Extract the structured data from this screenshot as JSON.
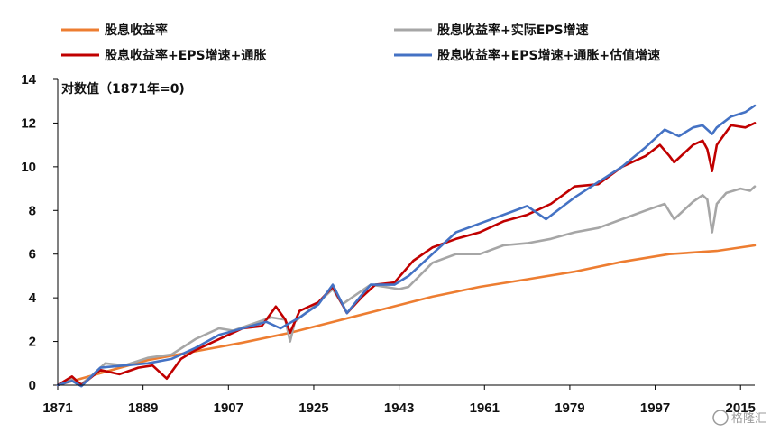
{
  "chart_data": {
    "type": "line",
    "title": "",
    "xlabel": "",
    "ylabel": "对数值（1871年=0)",
    "xlim": [
      1871,
      2018
    ],
    "ylim": [
      0,
      14
    ],
    "yticks": [
      "0",
      "2",
      "4",
      "6",
      "8",
      "10",
      "12",
      "14"
    ],
    "xticks": [
      "1871",
      "1889",
      "1907",
      "1925",
      "1943",
      "1961",
      "1979",
      "1997",
      "2015"
    ],
    "grid": false,
    "legend_position": "top",
    "series": [
      {
        "name": "股息收益率",
        "color": "#ED7D31",
        "points": [
          [
            1871,
            0
          ],
          [
            1880,
            0.55
          ],
          [
            1890,
            1.15
          ],
          [
            1900,
            1.55
          ],
          [
            1910,
            1.95
          ],
          [
            1920,
            2.4
          ],
          [
            1930,
            2.95
          ],
          [
            1940,
            3.5
          ],
          [
            1950,
            4.05
          ],
          [
            1960,
            4.5
          ],
          [
            1970,
            4.85
          ],
          [
            1980,
            5.2
          ],
          [
            1990,
            5.65
          ],
          [
            2000,
            6.0
          ],
          [
            2010,
            6.15
          ],
          [
            2018,
            6.4
          ]
        ]
      },
      {
        "name": "股息收益率+实际EPS增速",
        "color": "#A6A6A6",
        "points": [
          [
            1871,
            0
          ],
          [
            1874,
            0.3
          ],
          [
            1876,
            0.05
          ],
          [
            1878,
            0.4
          ],
          [
            1881,
            1.0
          ],
          [
            1885,
            0.9
          ],
          [
            1890,
            1.25
          ],
          [
            1895,
            1.4
          ],
          [
            1900,
            2.1
          ],
          [
            1905,
            2.6
          ],
          [
            1908,
            2.5
          ],
          [
            1912,
            2.8
          ],
          [
            1916,
            3.1
          ],
          [
            1919,
            3.0
          ],
          [
            1920,
            2.0
          ],
          [
            1921,
            2.9
          ],
          [
            1925,
            3.6
          ],
          [
            1929,
            4.4
          ],
          [
            1931,
            3.7
          ],
          [
            1933,
            4.0
          ],
          [
            1937,
            4.6
          ],
          [
            1940,
            4.5
          ],
          [
            1943,
            4.4
          ],
          [
            1945,
            4.5
          ],
          [
            1950,
            5.6
          ],
          [
            1955,
            6.0
          ],
          [
            1960,
            6.0
          ],
          [
            1965,
            6.4
          ],
          [
            1970,
            6.5
          ],
          [
            1975,
            6.7
          ],
          [
            1980,
            7.0
          ],
          [
            1985,
            7.2
          ],
          [
            1990,
            7.6
          ],
          [
            1995,
            8.0
          ],
          [
            1999,
            8.3
          ],
          [
            2001,
            7.6
          ],
          [
            2005,
            8.4
          ],
          [
            2007,
            8.7
          ],
          [
            2008,
            8.5
          ],
          [
            2009,
            7.0
          ],
          [
            2010,
            8.3
          ],
          [
            2012,
            8.8
          ],
          [
            2015,
            9.0
          ],
          [
            2017,
            8.9
          ],
          [
            2018,
            9.1
          ]
        ]
      },
      {
        "name": "股息收益率+EPS增速+通胀",
        "color": "#C00000",
        "points": [
          [
            1871,
            0
          ],
          [
            1874,
            0.4
          ],
          [
            1876,
            0.0
          ],
          [
            1880,
            0.7
          ],
          [
            1884,
            0.5
          ],
          [
            1888,
            0.8
          ],
          [
            1891,
            0.9
          ],
          [
            1894,
            0.3
          ],
          [
            1897,
            1.2
          ],
          [
            1900,
            1.6
          ],
          [
            1905,
            2.1
          ],
          [
            1910,
            2.6
          ],
          [
            1914,
            2.7
          ],
          [
            1917,
            3.6
          ],
          [
            1919,
            3.0
          ],
          [
            1920,
            2.4
          ],
          [
            1922,
            3.4
          ],
          [
            1926,
            3.8
          ],
          [
            1929,
            4.5
          ],
          [
            1932,
            3.3
          ],
          [
            1935,
            4.0
          ],
          [
            1938,
            4.6
          ],
          [
            1942,
            4.7
          ],
          [
            1946,
            5.7
          ],
          [
            1950,
            6.3
          ],
          [
            1955,
            6.7
          ],
          [
            1960,
            7.0
          ],
          [
            1965,
            7.5
          ],
          [
            1970,
            7.8
          ],
          [
            1975,
            8.3
          ],
          [
            1980,
            9.1
          ],
          [
            1985,
            9.2
          ],
          [
            1990,
            10.0
          ],
          [
            1995,
            10.5
          ],
          [
            1998,
            11.0
          ],
          [
            2000,
            10.5
          ],
          [
            2001,
            10.2
          ],
          [
            2005,
            11.0
          ],
          [
            2007,
            11.2
          ],
          [
            2008,
            10.8
          ],
          [
            2009,
            9.8
          ],
          [
            2010,
            11.0
          ],
          [
            2013,
            11.9
          ],
          [
            2016,
            11.8
          ],
          [
            2018,
            12.0
          ]
        ]
      },
      {
        "name": "股息收益率+EPS增速+通胀+估值增速",
        "color": "#4472C4",
        "points": [
          [
            1871,
            0
          ],
          [
            1874,
            0.2
          ],
          [
            1876,
            -0.05
          ],
          [
            1880,
            0.8
          ],
          [
            1885,
            0.9
          ],
          [
            1890,
            1.0
          ],
          [
            1895,
            1.2
          ],
          [
            1900,
            1.7
          ],
          [
            1905,
            2.3
          ],
          [
            1910,
            2.6
          ],
          [
            1915,
            2.9
          ],
          [
            1918,
            2.6
          ],
          [
            1922,
            3.1
          ],
          [
            1926,
            3.7
          ],
          [
            1929,
            4.6
          ],
          [
            1932,
            3.3
          ],
          [
            1935,
            4.1
          ],
          [
            1937,
            4.6
          ],
          [
            1942,
            4.6
          ],
          [
            1945,
            5.0
          ],
          [
            1950,
            6.0
          ],
          [
            1955,
            7.0
          ],
          [
            1960,
            7.4
          ],
          [
            1965,
            7.8
          ],
          [
            1970,
            8.2
          ],
          [
            1974,
            7.6
          ],
          [
            1980,
            8.6
          ],
          [
            1985,
            9.3
          ],
          [
            1990,
            10.0
          ],
          [
            1995,
            10.9
          ],
          [
            1999,
            11.7
          ],
          [
            2002,
            11.4
          ],
          [
            2005,
            11.8
          ],
          [
            2007,
            11.9
          ],
          [
            2009,
            11.5
          ],
          [
            2010,
            11.8
          ],
          [
            2013,
            12.3
          ],
          [
            2016,
            12.5
          ],
          [
            2018,
            12.8
          ]
        ]
      }
    ]
  },
  "watermark": "格隆汇"
}
